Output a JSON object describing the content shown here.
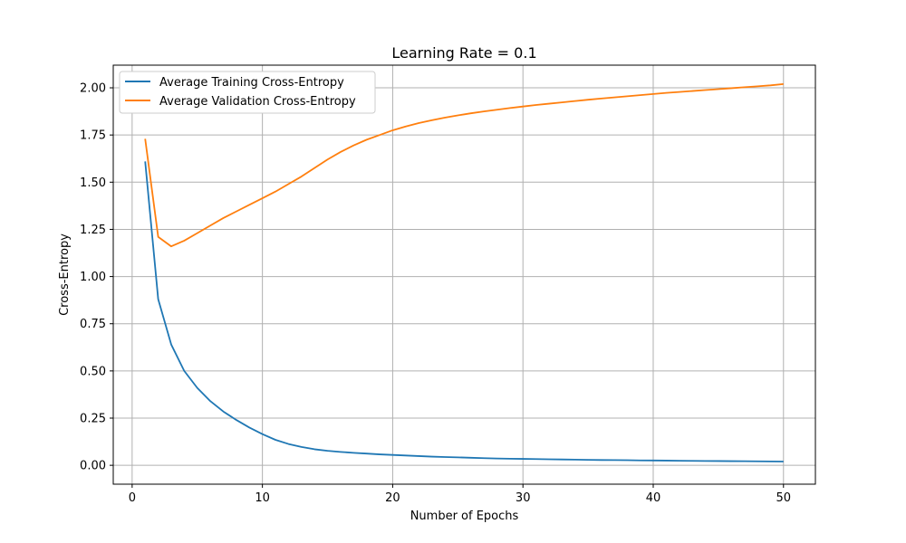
{
  "chart_data": {
    "type": "line",
    "title": "Learning Rate = 0.1",
    "xlabel": "Number of Epochs",
    "ylabel": "Cross-Entropy",
    "xlim": [
      -1.45,
      52.45
    ],
    "ylim": [
      -0.1,
      2.12
    ],
    "xticks": [
      0,
      10,
      20,
      30,
      40,
      50
    ],
    "xtick_labels": [
      "0",
      "10",
      "20",
      "30",
      "40",
      "50"
    ],
    "yticks": [
      0.0,
      0.25,
      0.5,
      0.75,
      1.0,
      1.25,
      1.5,
      1.75,
      2.0
    ],
    "ytick_labels": [
      "0.00",
      "0.25",
      "0.50",
      "0.75",
      "1.00",
      "1.25",
      "1.50",
      "1.75",
      "2.00"
    ],
    "grid": true,
    "legend_position": "top-left",
    "x": [
      1,
      2,
      3,
      4,
      5,
      6,
      7,
      8,
      9,
      10,
      11,
      12,
      13,
      14,
      15,
      16,
      17,
      18,
      19,
      20,
      21,
      22,
      23,
      24,
      25,
      26,
      27,
      28,
      29,
      30,
      31,
      32,
      33,
      34,
      35,
      36,
      37,
      38,
      39,
      40,
      41,
      42,
      43,
      44,
      45,
      46,
      47,
      48,
      49,
      50
    ],
    "series": [
      {
        "name": "Average Training Cross-Entropy",
        "color": "#1f77b4",
        "values": [
          1.61,
          0.88,
          0.64,
          0.5,
          0.41,
          0.34,
          0.285,
          0.24,
          0.2,
          0.165,
          0.135,
          0.113,
          0.097,
          0.085,
          0.077,
          0.071,
          0.066,
          0.062,
          0.058,
          0.055,
          0.052,
          0.049,
          0.046,
          0.044,
          0.042,
          0.04,
          0.038,
          0.036,
          0.035,
          0.034,
          0.033,
          0.032,
          0.031,
          0.03,
          0.029,
          0.028,
          0.0275,
          0.027,
          0.026,
          0.0255,
          0.025,
          0.024,
          0.0235,
          0.023,
          0.0225,
          0.022,
          0.0215,
          0.021,
          0.0205,
          0.02
        ]
      },
      {
        "name": "Average Validation Cross-Entropy",
        "color": "#ff7f0e",
        "values": [
          1.73,
          1.21,
          1.16,
          1.19,
          1.23,
          1.27,
          1.31,
          1.345,
          1.38,
          1.415,
          1.45,
          1.49,
          1.53,
          1.575,
          1.62,
          1.66,
          1.695,
          1.725,
          1.75,
          1.775,
          1.795,
          1.813,
          1.828,
          1.842,
          1.854,
          1.865,
          1.875,
          1.884,
          1.893,
          1.901,
          1.909,
          1.916,
          1.923,
          1.93,
          1.937,
          1.943,
          1.949,
          1.955,
          1.961,
          1.967,
          1.973,
          1.978,
          1.983,
          1.988,
          1.993,
          1.998,
          2.003,
          2.008,
          2.013,
          2.02
        ]
      }
    ]
  }
}
